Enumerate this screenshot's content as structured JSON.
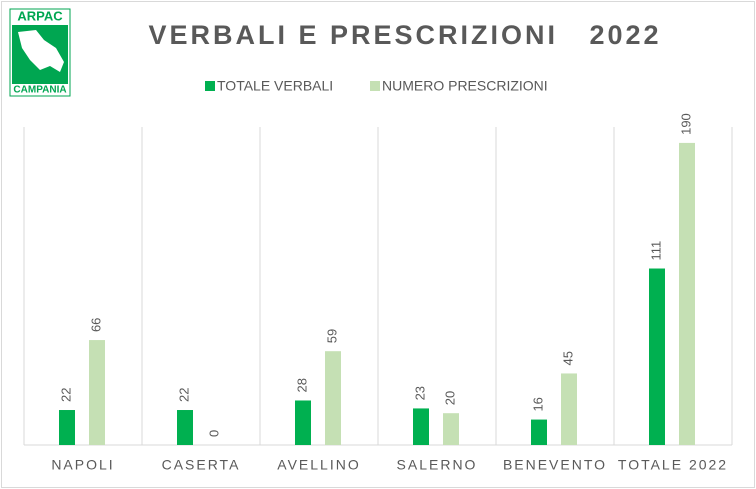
{
  "logo": {
    "top": "ARPAC",
    "bottom": "CAMPANIA"
  },
  "chart_data": {
    "type": "bar",
    "title": "VERBALI E PRESCRIZIONI   2022",
    "categories": [
      "NAPOLI",
      "CASERTA",
      "AVELLINO",
      "SALERNO",
      "BENEVENTO",
      "TOTALE 2022"
    ],
    "series": [
      {
        "name": "TOTALE VERBALI",
        "color": "#00b050",
        "values": [
          22,
          22,
          28,
          23,
          16,
          111
        ]
      },
      {
        "name": "NUMERO PRESCRIZIONI",
        "color": "#c5e0b4",
        "values": [
          66,
          0,
          59,
          20,
          45,
          190
        ]
      }
    ],
    "ylim": [
      0,
      200
    ]
  }
}
